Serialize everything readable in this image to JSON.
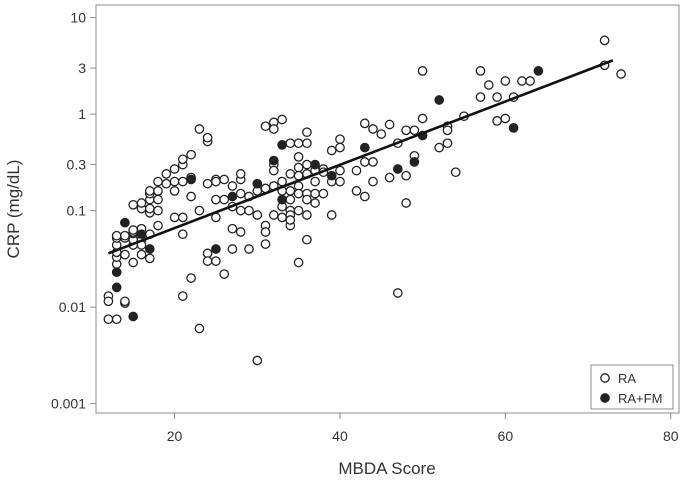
{
  "chart_data": {
    "type": "scatter",
    "title": "",
    "xlabel": "MBDA Score",
    "ylabel": "CRP (mg/dL)",
    "xlim": [
      10.5,
      81
    ],
    "ylim": [
      0.0008,
      13.5
    ],
    "yscale": "log",
    "grid": false,
    "legend_position": "bottom-right",
    "x_ticks": [
      20,
      40,
      60,
      80
    ],
    "y_ticks": [
      {
        "value": 10,
        "label": "10"
      },
      {
        "value": 3,
        "label": "3"
      },
      {
        "value": 1,
        "label": "1"
      },
      {
        "value": 0.3,
        "label": "0.3"
      },
      {
        "value": 0.1,
        "label": "0.1"
      },
      {
        "value": 0.01,
        "label": "0.01"
      },
      {
        "value": 0.001,
        "label": "0.001"
      }
    ],
    "series": [
      {
        "name": "RA",
        "marker": "open-circle",
        "color": "#222222",
        "points": [
          [
            12,
            0.013
          ],
          [
            12,
            0.0115
          ],
          [
            12,
            0.0075
          ],
          [
            13,
            0.0075
          ],
          [
            13,
            0.028
          ],
          [
            13,
            0.033
          ],
          [
            13,
            0.037
          ],
          [
            13,
            0.044
          ],
          [
            13,
            0.052
          ],
          [
            13,
            0.055
          ],
          [
            14,
            0.011
          ],
          [
            14,
            0.0115
          ],
          [
            14,
            0.035
          ],
          [
            14,
            0.052
          ],
          [
            14,
            0.055
          ],
          [
            15,
            0.044
          ],
          [
            15,
            0.05
          ],
          [
            15,
            0.058
          ],
          [
            15,
            0.06
          ],
          [
            15,
            0.063
          ],
          [
            15,
            0.115
          ],
          [
            15,
            0.029
          ],
          [
            16,
            0.05
          ],
          [
            16,
            0.065
          ],
          [
            16,
            0.105
          ],
          [
            16,
            0.12
          ],
          [
            16,
            0.044
          ],
          [
            16,
            0.035
          ],
          [
            17,
            0.095
          ],
          [
            17,
            0.105
          ],
          [
            17,
            0.13
          ],
          [
            17,
            0.15
          ],
          [
            17,
            0.16
          ],
          [
            17,
            0.032
          ],
          [
            17,
            0.057
          ],
          [
            18,
            0.07
          ],
          [
            18,
            0.1
          ],
          [
            18,
            0.13
          ],
          [
            18,
            0.16
          ],
          [
            18,
            0.2
          ],
          [
            19,
            0.19
          ],
          [
            19,
            0.24
          ],
          [
            20,
            0.085
          ],
          [
            20,
            0.16
          ],
          [
            20,
            0.2
          ],
          [
            20,
            0.27
          ],
          [
            21,
            0.2
          ],
          [
            21,
            0.3
          ],
          [
            21,
            0.34
          ],
          [
            21,
            0.085
          ],
          [
            21,
            0.013
          ],
          [
            21,
            0.057
          ],
          [
            22,
            0.38
          ],
          [
            22,
            0.14
          ],
          [
            22,
            0.22
          ],
          [
            22,
            0.02
          ],
          [
            23,
            0.7
          ],
          [
            23,
            0.1
          ],
          [
            23,
            0.006
          ],
          [
            24,
            0.52
          ],
          [
            24,
            0.57
          ],
          [
            24,
            0.19
          ],
          [
            24,
            0.036
          ],
          [
            24,
            0.03
          ],
          [
            25,
            0.21
          ],
          [
            25,
            0.2
          ],
          [
            25,
            0.13
          ],
          [
            25,
            0.03
          ],
          [
            25,
            0.085
          ],
          [
            26,
            0.21
          ],
          [
            26,
            0.13
          ],
          [
            26,
            0.022
          ],
          [
            27,
            0.18
          ],
          [
            27,
            0.11
          ],
          [
            27,
            0.065
          ],
          [
            27,
            0.04
          ],
          [
            28,
            0.21
          ],
          [
            28,
            0.24
          ],
          [
            28,
            0.15
          ],
          [
            28,
            0.1
          ],
          [
            28,
            0.06
          ],
          [
            29,
            0.14
          ],
          [
            29,
            0.1
          ],
          [
            29,
            0.04
          ],
          [
            30,
            0.16
          ],
          [
            30,
            0.09
          ],
          [
            30,
            0.0028
          ],
          [
            31,
            0.75
          ],
          [
            31,
            0.17
          ],
          [
            31,
            0.07
          ],
          [
            31,
            0.06
          ],
          [
            31,
            0.045
          ],
          [
            32,
            0.82
          ],
          [
            32,
            0.7
          ],
          [
            32,
            0.3
          ],
          [
            32,
            0.26
          ],
          [
            32,
            0.18
          ],
          [
            32,
            0.09
          ],
          [
            33,
            0.88
          ],
          [
            33,
            0.2
          ],
          [
            33,
            0.16
          ],
          [
            33,
            0.11
          ],
          [
            33,
            0.085
          ],
          [
            34,
            0.5
          ],
          [
            34,
            0.24
          ],
          [
            34,
            0.16
          ],
          [
            34,
            0.13
          ],
          [
            34,
            0.1
          ],
          [
            34,
            0.09
          ],
          [
            34,
            0.07
          ],
          [
            34,
            0.08
          ],
          [
            35,
            0.5
          ],
          [
            35,
            0.36
          ],
          [
            35,
            0.28
          ],
          [
            35,
            0.23
          ],
          [
            35,
            0.18
          ],
          [
            35,
            0.15
          ],
          [
            35,
            0.1
          ],
          [
            35,
            0.029
          ],
          [
            36,
            0.65
          ],
          [
            36,
            0.5
          ],
          [
            36,
            0.3
          ],
          [
            36,
            0.24
          ],
          [
            36,
            0.15
          ],
          [
            36,
            0.13
          ],
          [
            36,
            0.09
          ],
          [
            36,
            0.05
          ],
          [
            37,
            0.26
          ],
          [
            37,
            0.2
          ],
          [
            37,
            0.15
          ],
          [
            37,
            0.12
          ],
          [
            38,
            0.27
          ],
          [
            38,
            0.25
          ],
          [
            38,
            0.15
          ],
          [
            39,
            0.42
          ],
          [
            39,
            0.2
          ],
          [
            39,
            0.09
          ],
          [
            40,
            0.55
          ],
          [
            40,
            0.45
          ],
          [
            40,
            0.26
          ],
          [
            40,
            0.2
          ],
          [
            42,
            0.26
          ],
          [
            42,
            0.16
          ],
          [
            43,
            0.8
          ],
          [
            43,
            0.32
          ],
          [
            43,
            0.14
          ],
          [
            44,
            0.7
          ],
          [
            44,
            0.32
          ],
          [
            44,
            0.2
          ],
          [
            45,
            0.62
          ],
          [
            46,
            0.78
          ],
          [
            46,
            0.22
          ],
          [
            47,
            0.5
          ],
          [
            47,
            0.014
          ],
          [
            48,
            0.68
          ],
          [
            48,
            0.23
          ],
          [
            48,
            0.12
          ],
          [
            49,
            0.68
          ],
          [
            49,
            0.37
          ],
          [
            50,
            2.8
          ],
          [
            50,
            0.9
          ],
          [
            52,
            0.45
          ],
          [
            53,
            0.75
          ],
          [
            53,
            0.68
          ],
          [
            53,
            0.5
          ],
          [
            54,
            0.25
          ],
          [
            55,
            0.95
          ],
          [
            57,
            2.8
          ],
          [
            57,
            1.5
          ],
          [
            58,
            2.0
          ],
          [
            59,
            1.5
          ],
          [
            59,
            0.85
          ],
          [
            60,
            2.2
          ],
          [
            60,
            0.9
          ],
          [
            61,
            1.5
          ],
          [
            62,
            2.2
          ],
          [
            63,
            2.2
          ],
          [
            72,
            5.8
          ],
          [
            72,
            3.2
          ],
          [
            74,
            2.6
          ]
        ]
      },
      {
        "name": "RA+FM",
        "marker": "filled-circle",
        "color": "#222222",
        "points": [
          [
            13,
            0.023
          ],
          [
            13,
            0.016
          ],
          [
            14,
            0.075
          ],
          [
            15,
            0.008
          ],
          [
            16,
            0.057
          ],
          [
            17,
            0.04
          ],
          [
            22,
            0.21
          ],
          [
            25,
            0.04
          ],
          [
            27,
            0.14
          ],
          [
            30,
            0.19
          ],
          [
            32,
            0.33
          ],
          [
            33,
            0.48
          ],
          [
            33,
            0.13
          ],
          [
            37,
            0.3
          ],
          [
            39,
            0.23
          ],
          [
            43,
            0.45
          ],
          [
            47,
            0.27
          ],
          [
            49,
            0.32
          ],
          [
            50,
            0.6
          ],
          [
            52,
            1.4
          ],
          [
            61,
            0.72
          ],
          [
            64,
            2.8
          ]
        ]
      }
    ],
    "trendline": {
      "type": "linear fit on log scale",
      "points": [
        [
          12,
          0.036
        ],
        [
          73,
          3.6
        ]
      ]
    }
  }
}
